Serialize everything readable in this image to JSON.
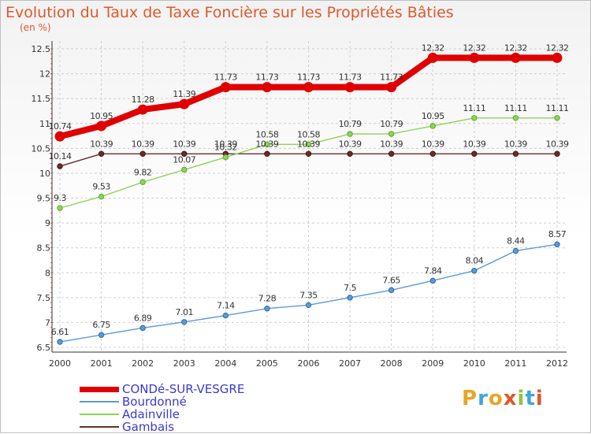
{
  "title": "Evolution du Taux de Taxe Foncière sur les Propriétés Bâties",
  "unit_label": "(en %)",
  "brand": {
    "text": "Proxiti",
    "colors": [
      "#e8a526",
      "#3fa7dc",
      "#e8a526",
      "#e0572b",
      "#8cc63f",
      "#3fa7dc",
      "#e0572b"
    ]
  },
  "chart_data": {
    "type": "line",
    "x": [
      2000,
      2001,
      2002,
      2003,
      2004,
      2005,
      2006,
      2007,
      2008,
      2009,
      2010,
      2011,
      2012
    ],
    "ylim": [
      6.5,
      12.5
    ],
    "yticks": [
      6.5,
      7,
      7.5,
      8,
      8.5,
      9,
      9.5,
      10,
      10.5,
      11,
      11.5,
      12,
      12.5
    ],
    "ytick_labels": [
      "6.5",
      "7",
      "7.5",
      "8",
      "8.5",
      "9",
      "9.5",
      "10",
      "10.5",
      "11",
      "11.5",
      "12",
      "12.5"
    ],
    "grid": true,
    "series": [
      {
        "name": "CONDé-SUR-VESGRE",
        "color": "#e00000",
        "values": [
          10.74,
          10.95,
          11.28,
          11.39,
          11.73,
          11.73,
          11.73,
          11.73,
          11.73,
          12.32,
          12.32,
          12.32,
          12.32
        ],
        "labels": [
          "10.74",
          "10.95",
          "11.28",
          "11.39",
          "11.73",
          "11.73",
          "11.73",
          "11.73",
          "11.73",
          "12.32",
          "12.32",
          "12.32",
          "12.32"
        ]
      },
      {
        "name": "Bourdonné",
        "color": "#5b9bd5",
        "values": [
          6.61,
          6.75,
          6.89,
          7.01,
          7.14,
          7.28,
          7.35,
          7.5,
          7.65,
          7.84,
          8.04,
          8.44,
          8.57
        ],
        "labels": [
          "6.61",
          "6.75",
          "6.89",
          "7.01",
          "7.14",
          "7.28",
          "7.35",
          "7.5",
          "7.65",
          "7.84",
          "8.04",
          "8.44",
          "8.57"
        ]
      },
      {
        "name": "Adainville",
        "color": "#8ed35a",
        "values": [
          9.3,
          9.53,
          9.82,
          10.07,
          10.32,
          10.58,
          10.58,
          10.79,
          10.79,
          10.95,
          11.11,
          11.11,
          11.11
        ],
        "labels": [
          "9.3",
          "9.53",
          "9.82",
          "10.07",
          "10.32",
          "10.58",
          "10.58",
          "10.79",
          "10.79",
          "10.95",
          "11.11",
          "11.11",
          "11.11"
        ]
      },
      {
        "name": "Gambais",
        "color": "#6b2c2c",
        "values": [
          10.14,
          10.39,
          10.39,
          10.39,
          10.39,
          10.39,
          10.39,
          10.39,
          10.39,
          10.39,
          10.39,
          10.39,
          10.39
        ],
        "labels": [
          "10.14",
          "10.39",
          "10.39",
          "10.39",
          "10.39",
          "10.39",
          "10.39",
          "10.39",
          "10.39",
          "10.39",
          "10.39",
          "10.39",
          "10.39"
        ]
      }
    ]
  }
}
